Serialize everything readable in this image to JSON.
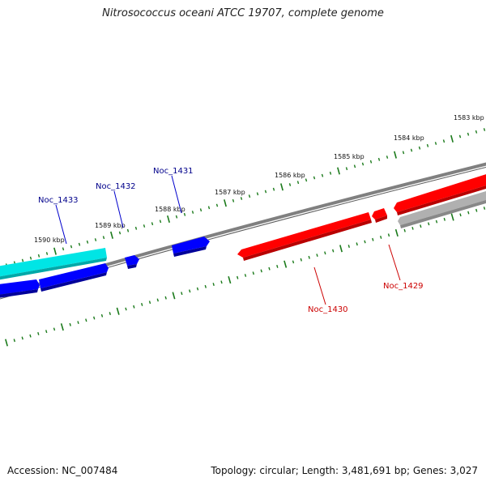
{
  "title": "Nitrosococcus oceani ATCC 19707, complete genome",
  "footer": {
    "accession": "Accession: NC_007484",
    "summary": "Topology: circular; Length: 3,481,691 bp; Genes: 3,027"
  },
  "colors": {
    "tick": "#1a7a1a",
    "backbone": "#808080",
    "forward_gene": "#0000ff",
    "forward_highlight": "#00e5e5",
    "reverse_gene": "#ff0000",
    "reverse_other": "#b0b0b0",
    "forward_label": "#00008b",
    "reverse_label": "#cc0000"
  },
  "tick_labels": [
    "1583 kbp",
    "1584 kbp",
    "1585 kbp",
    "1586 kbp",
    "1587 kbp",
    "1588 kbp",
    "1589 kbp",
    "1590 kbp"
  ],
  "gene_labels": {
    "forward": [
      "Noc_1433",
      "Noc_1432",
      "Noc_1431"
    ],
    "reverse": [
      "Noc_1430",
      "Noc_1429"
    ]
  }
}
